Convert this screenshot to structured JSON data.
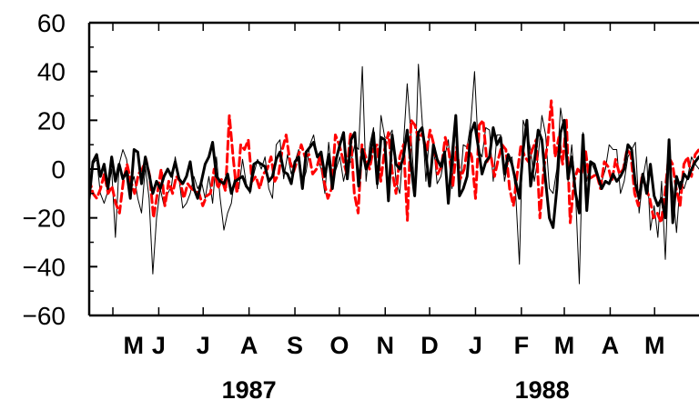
{
  "chart_data": {
    "type": "line",
    "title": "",
    "xlabel": "",
    "ylabel": "",
    "ylim": [
      -60,
      60
    ],
    "yticks": [
      60,
      40,
      20,
      0,
      -20,
      -40,
      -60
    ],
    "ytick_labels": [
      "60",
      "40",
      "20",
      "0",
      "−20",
      "−40",
      "−60"
    ],
    "x_start": "1987-04-15",
    "x_end": "1988-05-31",
    "month_labels": [
      "M",
      "J",
      "J",
      "A",
      "S",
      "O",
      "N",
      "D",
      "J",
      "F",
      "M",
      "A",
      "M"
    ],
    "month_dates": [
      "1987-05-15",
      "1987-06-01",
      "1987-07-01",
      "1987-08-01",
      "1987-09-01",
      "1987-10-01",
      "1987-11-01",
      "1987-12-01",
      "1988-01-01",
      "1988-02-01",
      "1988-03-01",
      "1988-04-01",
      "1988-05-01"
    ],
    "year_labels": [
      "1987",
      "1988"
    ],
    "year_dates": [
      "1987-08-01",
      "1988-02-15"
    ],
    "grid": false,
    "legend": "none",
    "series": [
      {
        "color": "#000000",
        "style": "thick-solid",
        "values": [
          -12,
          3,
          6,
          -3,
          2,
          -8,
          5,
          -5,
          2,
          -4,
          -1,
          -12,
          8,
          7,
          -6,
          5,
          -2,
          -10,
          -5,
          -8,
          -3,
          0,
          -3,
          3,
          -4,
          -6,
          -3,
          3,
          -8,
          -12,
          -5,
          2,
          5,
          11,
          -3,
          -5,
          -6,
          -2,
          -10,
          -5,
          -4,
          -3,
          -7,
          -9,
          2,
          3,
          2,
          1,
          -5,
          -3,
          4,
          7,
          -1,
          -2,
          -6,
          3,
          5,
          -8,
          7,
          9,
          11,
          5,
          7,
          -3,
          6,
          -8,
          4,
          10,
          15,
          -4,
          12,
          15,
          -7,
          8,
          0,
          4,
          15,
          -6,
          13,
          12,
          -13,
          14,
          2,
          0,
          5,
          16,
          2,
          -11,
          15,
          17,
          6,
          -7,
          10,
          4,
          1,
          7,
          -14,
          5,
          22,
          -11,
          -8,
          -3,
          15,
          19,
          9,
          -2,
          3,
          5,
          17,
          10,
          13,
          -2,
          6,
          2,
          -5,
          -12,
          8,
          20,
          -7,
          3,
          16,
          12,
          -5,
          -20,
          -24,
          -8,
          15,
          20,
          -4,
          5,
          -10,
          -18,
          14,
          -17,
          3,
          2,
          -3,
          -8,
          -5,
          -6,
          -2,
          -5,
          -3,
          0,
          10,
          8,
          -6,
          -12,
          -2,
          -10,
          2,
          -11,
          -15,
          -12,
          -20,
          12,
          -22,
          -3,
          -8,
          -2,
          -4,
          0,
          3,
          5
        ]
      },
      {
        "color": "#000000",
        "style": "thin-solid",
        "values": [
          -15,
          2,
          4,
          -10,
          -14,
          -9,
          0,
          -28,
          2,
          8,
          4,
          -8,
          -3,
          -12,
          -18,
          1,
          -12,
          -43,
          -20,
          -8,
          -15,
          -10,
          -7,
          5,
          -4,
          -16,
          -14,
          -10,
          -3,
          -8,
          -5,
          -12,
          -3,
          -14,
          5,
          -12,
          -25,
          -18,
          -14,
          -2,
          -8,
          4,
          -6,
          -10,
          -2,
          4,
          0,
          5,
          -8,
          -12,
          10,
          12,
          -4,
          6,
          -2,
          3,
          8,
          -6,
          -1,
          10,
          14,
          5,
          0,
          -10,
          11,
          -3,
          0,
          5,
          -5,
          2,
          3,
          10,
          8,
          42,
          -5,
          10,
          17,
          -8,
          22,
          13,
          13,
          16,
          -5,
          -10,
          10,
          35,
          14,
          -8,
          43,
          20,
          -5,
          15,
          10,
          -6,
          -3,
          5,
          12,
          -8,
          22,
          -11,
          10,
          9,
          19,
          40,
          8,
          5,
          17,
          16,
          -5,
          14,
          14,
          -5,
          3,
          5,
          -10,
          -39,
          20,
          15,
          8,
          -5,
          5,
          22,
          14,
          -8,
          -10,
          0,
          25,
          15,
          -5,
          10,
          -10,
          -47,
          15,
          -5,
          3,
          0,
          -5,
          -5,
          0,
          10,
          8,
          8,
          -10,
          -5,
          5,
          8,
          11,
          -18,
          -4,
          5,
          -25,
          -15,
          -28,
          -5,
          -37,
          4,
          -8,
          -26,
          -5,
          -8,
          -3,
          5,
          2,
          0
        ]
      },
      {
        "color": "#ff0000",
        "style": "dashed",
        "values": [
          -4,
          -10,
          -12,
          -8,
          -2,
          -10,
          -7,
          -14,
          -18,
          -5,
          2,
          -5,
          -10,
          -2,
          0,
          4,
          -3,
          -20,
          -10,
          0,
          -15,
          -5,
          -10,
          -3,
          -5,
          -12,
          -6,
          -8,
          -9,
          -10,
          -15,
          -11,
          -10,
          0,
          -8,
          -4,
          -9,
          22,
          5,
          -10,
          10,
          8,
          12,
          -5,
          -3,
          -8,
          -2,
          0,
          5,
          -5,
          -2,
          8,
          14,
          3,
          -1,
          4,
          10,
          5,
          6,
          -2,
          0,
          6,
          -5,
          -12,
          -8,
          14,
          10,
          4,
          -2,
          15,
          -10,
          -18,
          10,
          5,
          0,
          8,
          10,
          -5,
          8,
          15,
          -1,
          -10,
          5,
          10,
          -21,
          20,
          18,
          12,
          15,
          7,
          16,
          10,
          -2,
          1,
          13,
          7,
          -7,
          9,
          -4,
          0,
          10,
          5,
          -12,
          18,
          20,
          3,
          6,
          -3,
          4,
          10,
          8,
          -8,
          -15,
          -2,
          10,
          5,
          3,
          8,
          12,
          -20,
          0,
          10,
          28,
          5,
          13,
          2,
          20,
          -22,
          -5,
          0,
          -2,
          8,
          -4,
          -3,
          -2,
          -8,
          3,
          1,
          -5,
          4,
          -2,
          0,
          8,
          6,
          -10,
          -15,
          -2,
          -8,
          -12,
          -20,
          -18,
          -22,
          -10,
          5,
          2,
          -8,
          -15,
          2,
          5,
          -3,
          6,
          8
        ]
      }
    ]
  }
}
